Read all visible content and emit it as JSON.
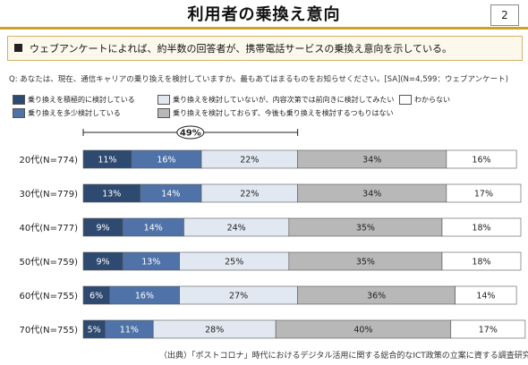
{
  "header": {
    "title": "利用者の乗換え意向",
    "page_number": "2"
  },
  "summary": {
    "text": "ウェブアンケートによれば、約半数の回答者が、携帯電話サービスの乗換え意向を示している。"
  },
  "question": {
    "text": "Q: あなたは、現在、通信キャリアの乗り換えを検討していますか。最もあてはまるものをお知らせください。[SA](N=4,599：ウェブアンケート)"
  },
  "legend": {
    "items": [
      {
        "label": "乗り換えを積極的に検討している",
        "color": "#2f4a70"
      },
      {
        "label": "乗り換えを多少検討している",
        "color": "#4f73a8"
      },
      {
        "label": "乗り換えを検討していないが、内容次第では前向きに検討してみたい",
        "color": "#e2e8f1"
      },
      {
        "label": "乗り換えを検討しておらず、今後も乗り換えを検討するつもりはない",
        "color": "#b8b8b8"
      },
      {
        "label": "わからない",
        "color": "#ffffff"
      }
    ]
  },
  "chart_data": {
    "type": "bar",
    "orientation": "horizontal-stacked-100",
    "categories": [
      "20代(N=774)",
      "30代(N=779)",
      "40代(N=777)",
      "50代(N=759)",
      "60代(N=755)",
      "70代(N=755)"
    ],
    "series": [
      {
        "name": "乗り換えを積極的に検討している",
        "values": [
          11,
          13,
          9,
          9,
          6,
          5
        ],
        "labels": [
          "11%",
          "13%",
          "9%",
          "9%",
          "6%",
          "5%"
        ]
      },
      {
        "name": "乗り換えを多少検討している",
        "values": [
          16,
          14,
          14,
          13,
          16,
          11
        ],
        "labels": [
          "16%",
          "14%",
          "14%",
          "13%",
          "16%",
          "11%"
        ]
      },
      {
        "name": "乗り換えを検討していないが、内容次第では前向きに検討してみたい",
        "values": [
          22,
          22,
          24,
          25,
          27,
          28
        ],
        "labels": [
          "22%",
          "22%",
          "24%",
          "25%",
          "27%",
          "28%"
        ]
      },
      {
        "name": "乗り換えを検討しておらず、今後も乗り換えを検討するつもりはない",
        "values": [
          34,
          34,
          35,
          35,
          36,
          40
        ],
        "labels": [
          "34%",
          "34%",
          "35%",
          "35%",
          "36%",
          "40%"
        ]
      },
      {
        "name": "わからない",
        "values": [
          16,
          17,
          18,
          18,
          14,
          17
        ],
        "labels": [
          "16%",
          "17%",
          "18%",
          "18%",
          "14%",
          "17%"
        ]
      }
    ],
    "annotation": {
      "text": "49%"
    },
    "xlim": [
      0,
      100
    ]
  },
  "footer": {
    "source": "（出典）「ポストコロナ」時代におけるデジタル活用に関する総合的なICT政策の立案に資する調査研究"
  }
}
